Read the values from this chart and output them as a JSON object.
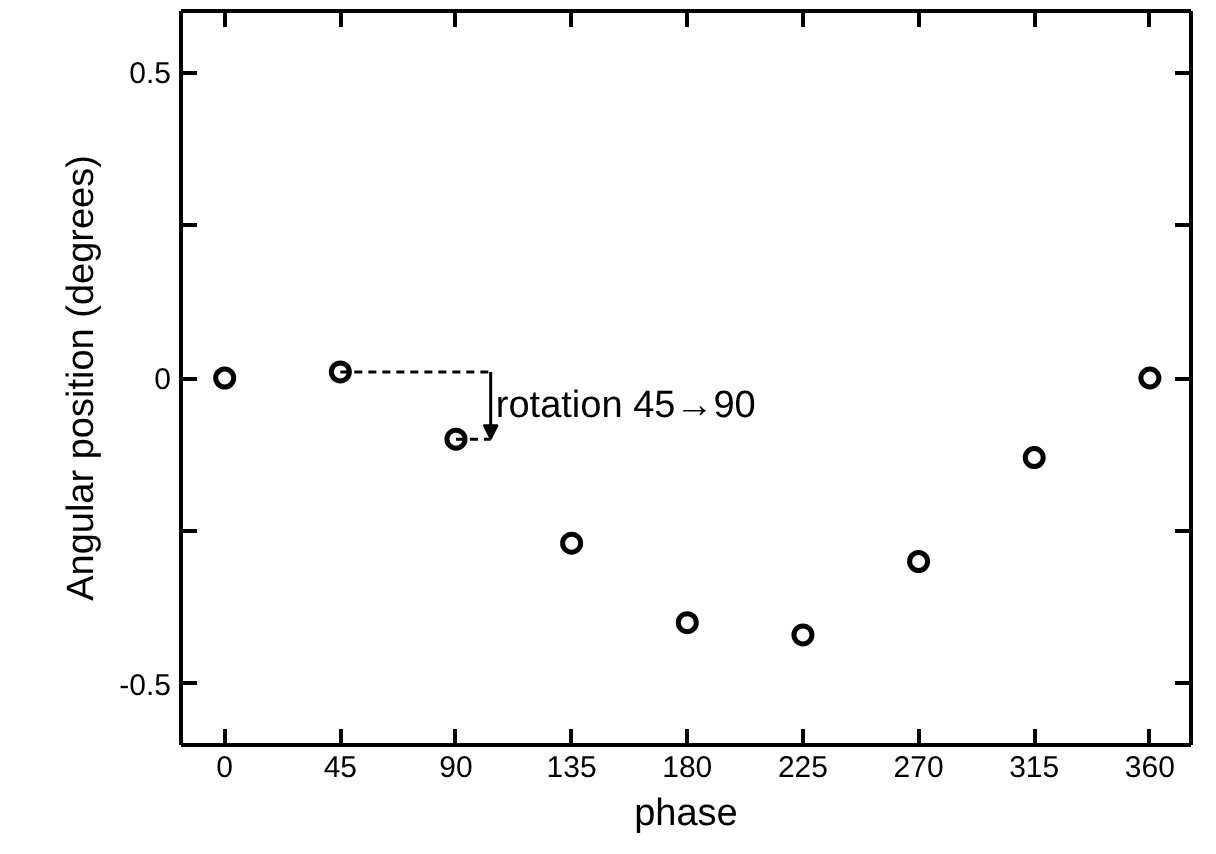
{
  "chart_data": {
    "type": "scatter",
    "xlabel": "phase",
    "ylabel": "Angular position (degrees)",
    "x": [
      0,
      45,
      90,
      135,
      180,
      225,
      270,
      315,
      360
    ],
    "values": [
      0,
      0.01,
      -0.1,
      -0.27,
      -0.4,
      -0.42,
      -0.3,
      -0.13,
      0
    ],
    "color": "#000000",
    "marker": "circle",
    "grid": false,
    "xlim": [
      -17,
      376
    ],
    "ylim": [
      -0.6,
      0.6
    ],
    "xticks": [
      0,
      45,
      90,
      135,
      180,
      225,
      270,
      315,
      360
    ],
    "yticks": [
      -0.5,
      {
        "value": -0.25,
        "label": null
      },
      0,
      {
        "value": 0.25,
        "label": null
      },
      0.5
    ],
    "annotations": [
      {
        "text": "rotation 45→90",
        "x": 90,
        "y": -0.1
      }
    ]
  }
}
